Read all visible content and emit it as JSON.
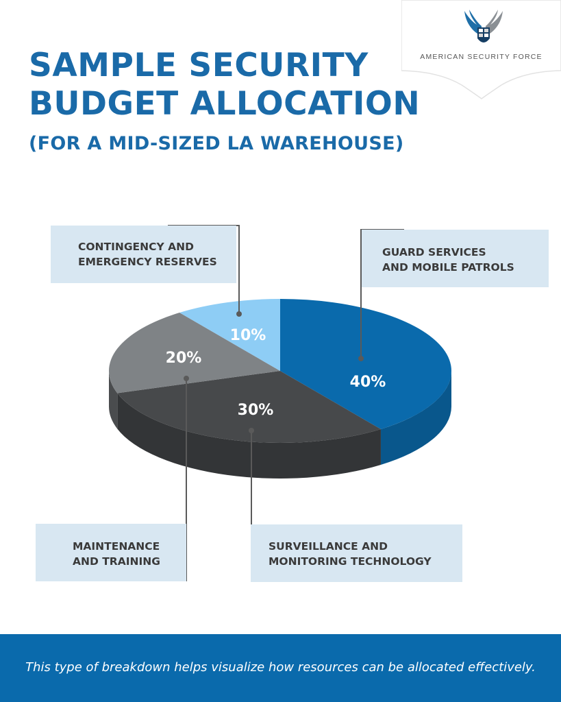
{
  "header": {
    "title_line1": "SAMPLE SECURITY",
    "title_line2": "BUDGET ALLOCATION",
    "subtitle": "(FOR A MID-SIZED LA WAREHOUSE)"
  },
  "brand": {
    "name": "AMERICAN SECURITY FORCE",
    "logo_icon": "eagle-wings-shield-icon"
  },
  "labels": {
    "contingency": [
      "CONTINGENCY AND",
      "EMERGENCY RESERVES"
    ],
    "guard": [
      "GUARD SERVICES",
      "AND MOBILE PATROLS"
    ],
    "maintenance": [
      "MAINTENANCE",
      "AND TRAINING"
    ],
    "surveillance": [
      "SURVEILLANCE AND",
      "MONITORING TECHNOLOGY"
    ]
  },
  "footer": {
    "text": "This type of breakdown helps visualize how resources can be allocated effectively."
  },
  "colors": {
    "title": "#1a6aa8",
    "footer_bg": "#0a6aac",
    "label_bg": "#d8e7f2"
  },
  "chart_data": {
    "type": "pie",
    "style": "3d",
    "slices": [
      {
        "category": "Guard Services and Mobile Patrols",
        "value": 40,
        "label": "40%",
        "color": "#0a6aac",
        "side_color": "#09578c"
      },
      {
        "category": "Surveillance and Monitoring Technology",
        "value": 30,
        "label": "30%",
        "color": "#47494b",
        "side_color": "#333537"
      },
      {
        "category": "Maintenance and Training",
        "value": 20,
        "label": "20%",
        "color": "#7f8386",
        "side_color": "#4a4c4e"
      },
      {
        "category": "Contingency and Emergency Reserves",
        "value": 10,
        "label": "10%",
        "color": "#8ecdf5",
        "side_color": "#6aa6cf"
      }
    ]
  }
}
